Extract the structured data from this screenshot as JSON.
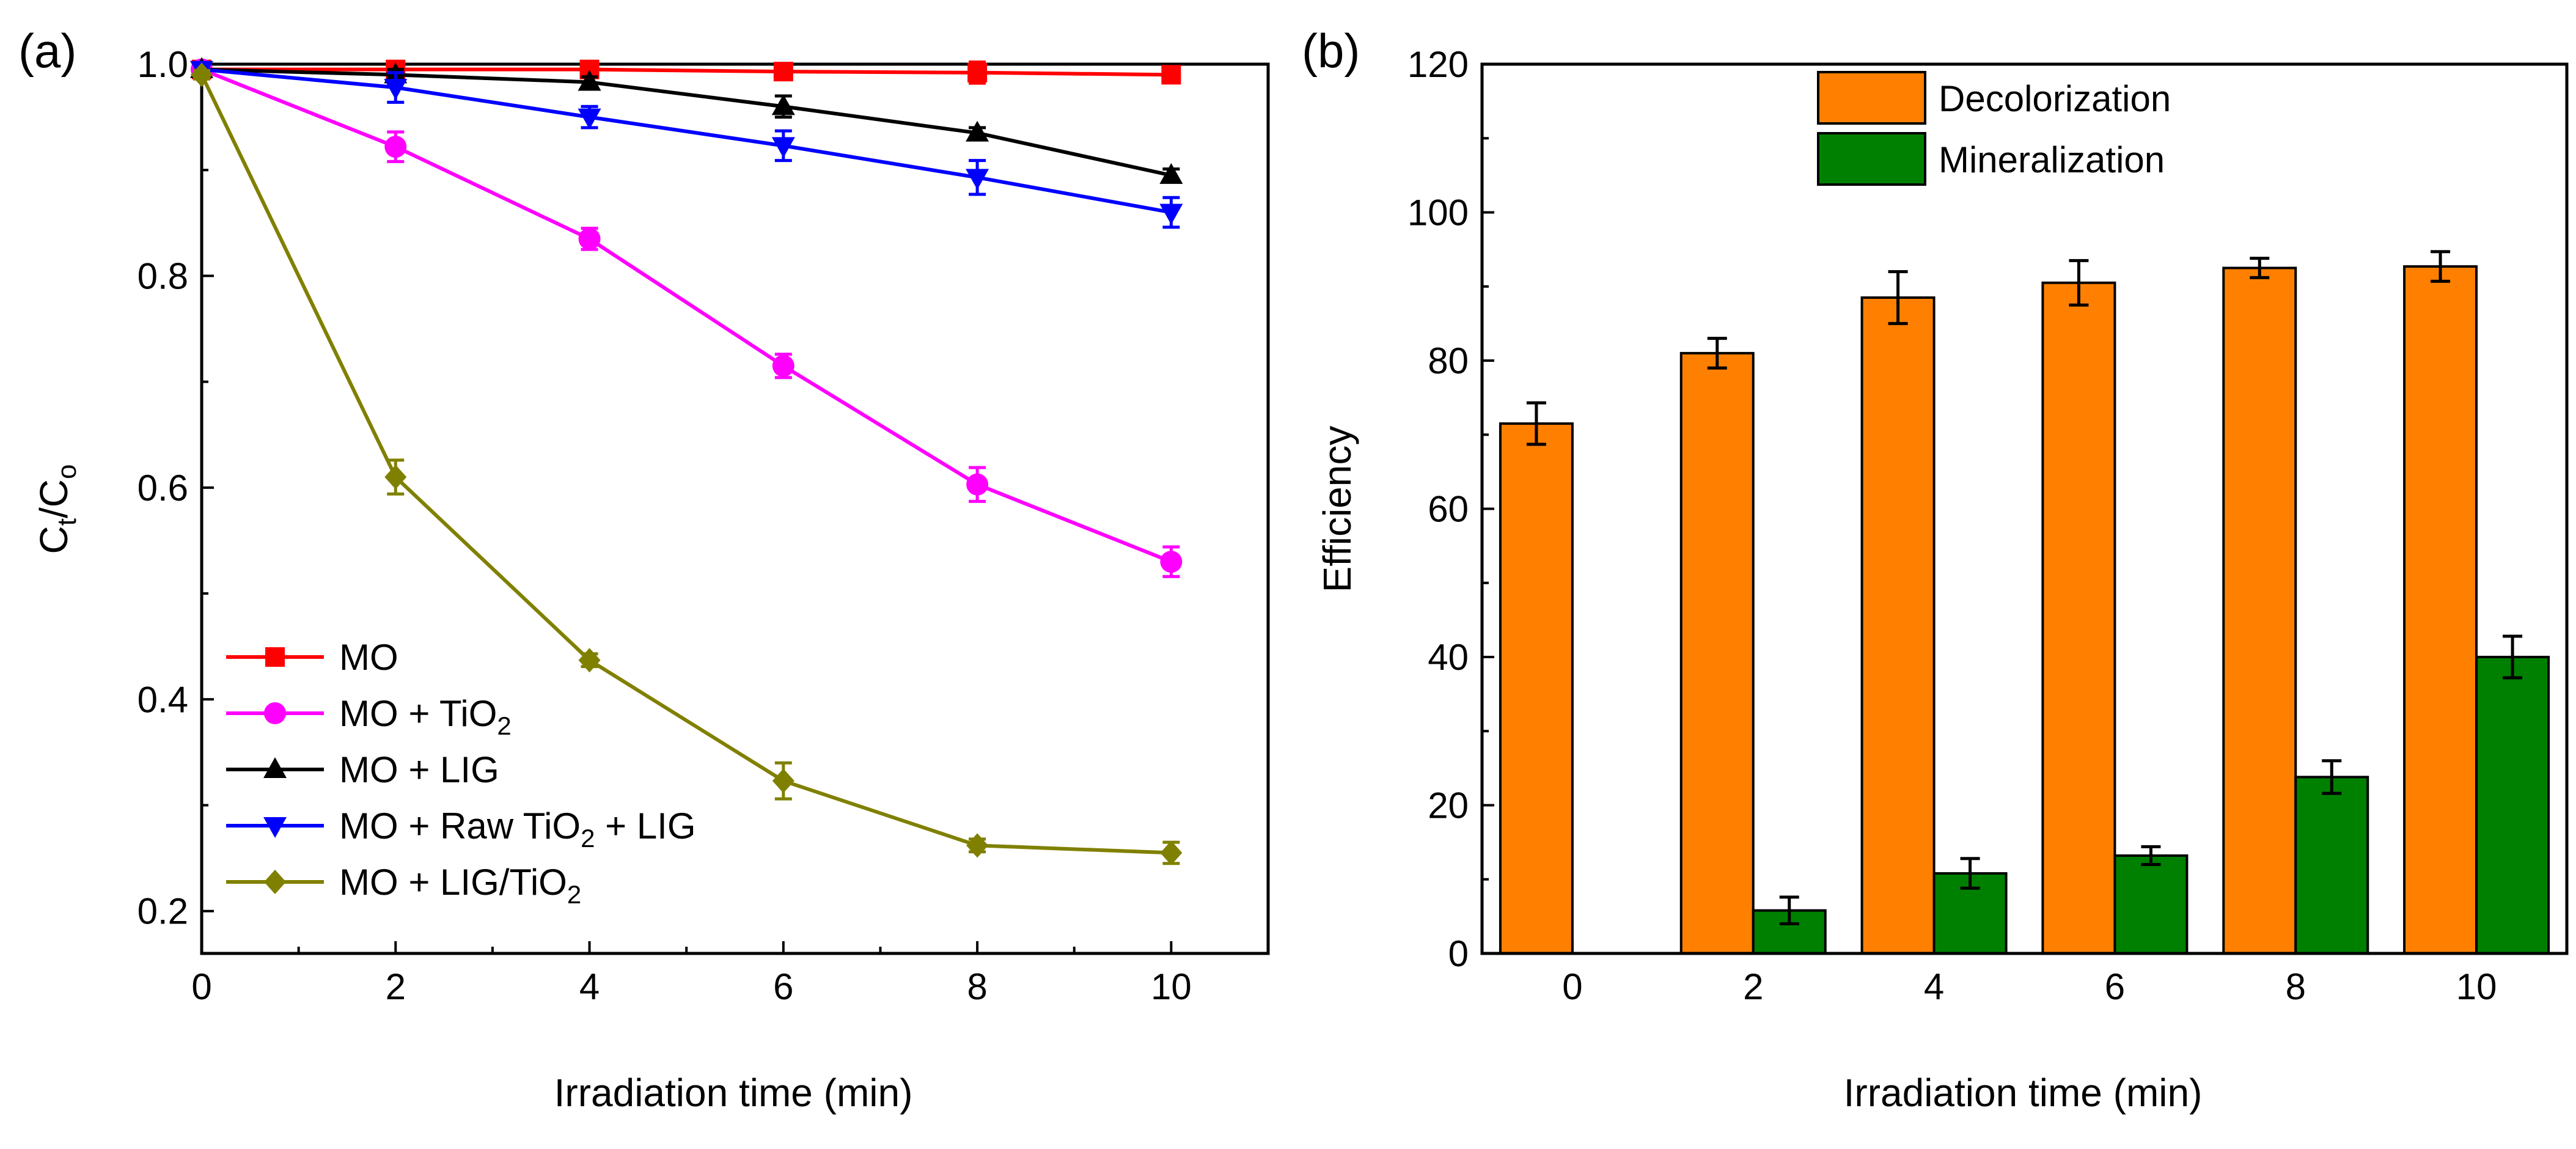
{
  "chart_data": [
    {
      "panel": "(a)",
      "type": "line",
      "xlabel": "Irradiation time (min)",
      "ylabel": {
        "main": "C",
        "sub1": "t",
        "sep": "/C",
        "sub2": "o"
      },
      "xlim": [
        0,
        11
      ],
      "ylim": [
        0.16,
        1.0
      ],
      "xticks": [
        "0",
        "2",
        "4",
        "6",
        "8",
        "10"
      ],
      "xtick_values": [
        0,
        2,
        4,
        6,
        8,
        10
      ],
      "yticks": [
        "0.2",
        "0.4",
        "0.6",
        "0.8",
        "1.0"
      ],
      "ytick_values": [
        0.2,
        0.4,
        0.6,
        0.8,
        1.0
      ],
      "x": [
        0,
        2,
        4,
        6,
        8,
        10
      ],
      "legend_position": "bottom-left",
      "series": [
        {
          "name": "MO",
          "legend": {
            "pre": "MO",
            "sub": "",
            "post": ""
          },
          "color": "#ff0000",
          "marker": "square",
          "values": [
            0.995,
            0.995,
            0.995,
            0.993,
            0.992,
            0.99
          ],
          "errors": [
            0.004,
            0.004,
            0.004,
            0.005,
            0.01,
            0.005
          ]
        },
        {
          "name": "MO + TiO2",
          "legend": {
            "pre": "MO + TiO",
            "sub": "2",
            "post": ""
          },
          "color": "#ff00ff",
          "marker": "circle",
          "values": [
            0.995,
            0.922,
            0.835,
            0.715,
            0.603,
            0.53
          ],
          "errors": [
            0.004,
            0.014,
            0.01,
            0.011,
            0.016,
            0.014
          ]
        },
        {
          "name": "MO + LIG",
          "legend": {
            "pre": "MO + LIG",
            "sub": "",
            "post": ""
          },
          "color": "#000000",
          "marker": "triangle-up",
          "values": [
            0.995,
            0.99,
            0.983,
            0.96,
            0.935,
            0.895
          ],
          "errors": [
            0.004,
            0.005,
            0.005,
            0.01,
            0.005,
            0.006
          ]
        },
        {
          "name": "MO + Raw TiO2 + LIG",
          "legend": {
            "pre": "MO + Raw TiO",
            "sub": "2",
            "post": " + LIG"
          },
          "color": "#0000ff",
          "marker": "triangle-down",
          "values": [
            0.995,
            0.978,
            0.95,
            0.923,
            0.893,
            0.86
          ],
          "errors": [
            0.004,
            0.014,
            0.01,
            0.014,
            0.016,
            0.014
          ]
        },
        {
          "name": "MO + LIG/TiO2",
          "legend": {
            "pre": "MO + LIG/TiO",
            "sub": "2",
            "post": ""
          },
          "color": "#808000",
          "marker": "diamond",
          "values": [
            0.99,
            0.61,
            0.437,
            0.323,
            0.262,
            0.255
          ],
          "errors": [
            0.004,
            0.016,
            0.006,
            0.017,
            0.006,
            0.01
          ]
        }
      ]
    },
    {
      "panel": "(b)",
      "type": "bar",
      "xlabel": "Irradiation time (min)",
      "ylabel": "Efficiency",
      "ylim": [
        0,
        120
      ],
      "yticks": [
        "0",
        "20",
        "40",
        "60",
        "80",
        "100",
        "120"
      ],
      "ytick_values": [
        0,
        20,
        40,
        60,
        80,
        100,
        120
      ],
      "categories": [
        "0",
        "2",
        "4",
        "6",
        "8",
        "10"
      ],
      "legend_position": "top-center",
      "series": [
        {
          "name": "Decolorization",
          "color": "#ff8000",
          "values": [
            71.5,
            81,
            88.5,
            90.5,
            92.5,
            92.7
          ],
          "errors": [
            2.8,
            2,
            3.5,
            3,
            1.3,
            2
          ]
        },
        {
          "name": "Mineralization",
          "color": "#008000",
          "values": [
            0,
            5.8,
            10.8,
            13.2,
            23.8,
            40
          ],
          "errors": [
            0,
            1.8,
            2,
            1.2,
            2.2,
            2.8
          ]
        }
      ]
    }
  ]
}
